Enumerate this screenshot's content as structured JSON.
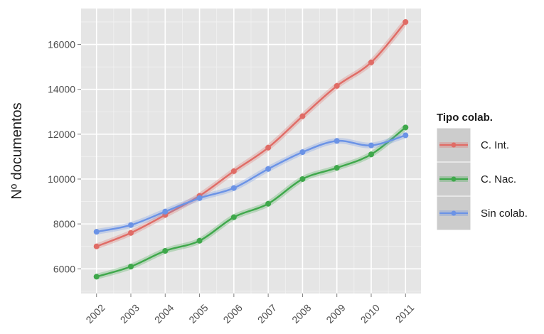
{
  "chart_data": {
    "type": "line",
    "title": "",
    "xlabel": "",
    "ylabel": "Nº documentos",
    "x": [
      2002,
      2003,
      2004,
      2005,
      2006,
      2007,
      2008,
      2009,
      2010,
      2011
    ],
    "x_tick_labels": [
      "2002",
      "2003",
      "2004",
      "2005",
      "2006",
      "2007",
      "2008",
      "2009",
      "2010",
      "2011"
    ],
    "y_ticks": [
      6000,
      8000,
      10000,
      12000,
      14000,
      16000
    ],
    "y_tick_labels": [
      "6000",
      "8000",
      "10000",
      "12000",
      "14000",
      "16000"
    ],
    "ylim": [
      4900,
      17600
    ],
    "grid": true,
    "legend": {
      "title": "Tipo colab.",
      "position": "right"
    },
    "series": [
      {
        "name": "C. Int.",
        "color": "#e06c66",
        "values": [
          7000,
          7600,
          8400,
          9250,
          10350,
          11400,
          12800,
          14150,
          15200,
          17000
        ]
      },
      {
        "name": "C. Nac.",
        "color": "#3fa84b",
        "values": [
          5650,
          6100,
          6800,
          7250,
          8300,
          8900,
          10000,
          10500,
          11100,
          12300
        ]
      },
      {
        "name": "Sin colab.",
        "color": "#6b93e6",
        "values": [
          7650,
          7950,
          8550,
          9150,
          9600,
          10450,
          11200,
          11700,
          11500,
          11950
        ]
      }
    ]
  }
}
